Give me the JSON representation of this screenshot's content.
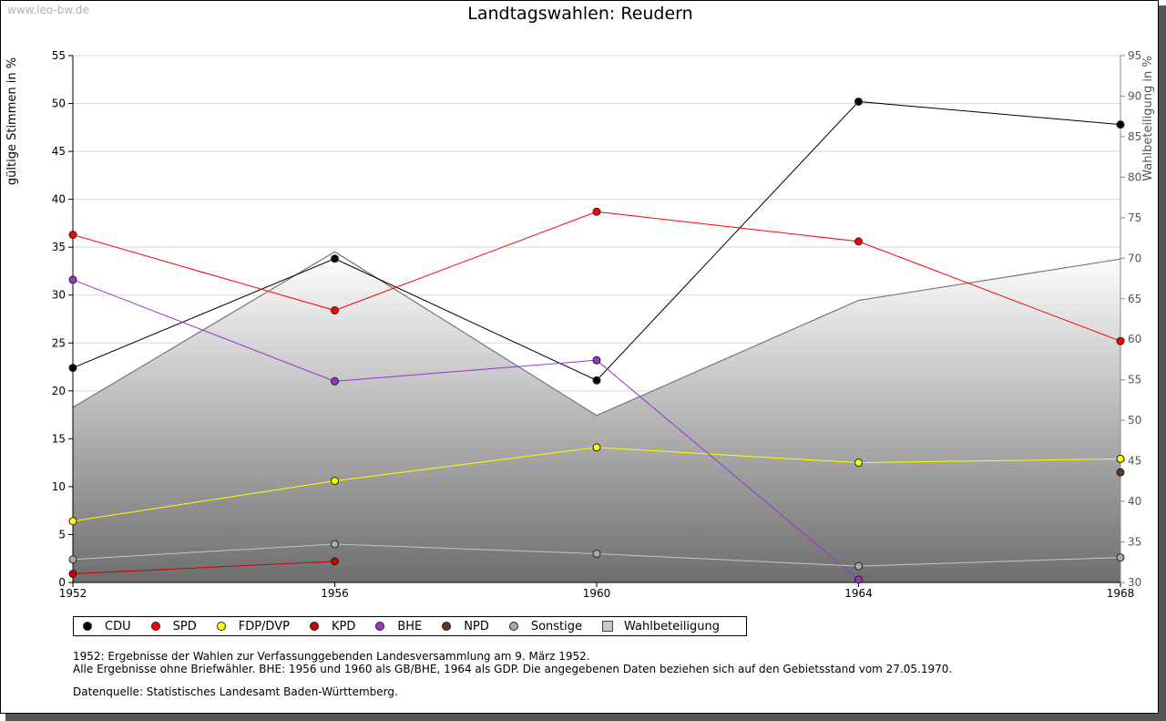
{
  "watermark": "www.leo-bw.de",
  "chart_data": {
    "type": "line",
    "title": "Landtagswahlen: Reudern",
    "ylabel": "gültige Stimmen in %",
    "y2label": "Wahlbeteiligung in %",
    "categories": [
      "1952",
      "1956",
      "1960",
      "1964",
      "1968"
    ],
    "ylim": [
      0,
      55
    ],
    "y2lim": [
      30,
      95
    ],
    "yticks": [
      0,
      5,
      10,
      15,
      20,
      25,
      30,
      35,
      40,
      45,
      50,
      55
    ],
    "y2ticks": [
      30,
      35,
      40,
      45,
      50,
      55,
      60,
      65,
      70,
      75,
      80,
      85,
      90,
      95
    ],
    "grid": true,
    "legend_position": "bottom",
    "series": [
      {
        "name": "CDU",
        "color": "#000000",
        "values": [
          22.4,
          33.8,
          21.1,
          50.2,
          47.8
        ]
      },
      {
        "name": "SPD",
        "color": "#ff0000",
        "values": [
          36.3,
          28.4,
          38.7,
          35.6,
          25.2
        ]
      },
      {
        "name": "FDP/DVP",
        "color": "#ffff00",
        "values": [
          6.4,
          10.6,
          14.1,
          12.5,
          12.9
        ]
      },
      {
        "name": "KPD",
        "color": "#cc0000",
        "values": [
          0.9,
          2.2,
          null,
          null,
          null
        ]
      },
      {
        "name": "BHE",
        "color": "#9933cc",
        "values": [
          31.6,
          21.0,
          23.2,
          0.3,
          null
        ]
      },
      {
        "name": "NPD",
        "color": "#5c3a21",
        "values": [
          null,
          null,
          null,
          null,
          11.5
        ]
      },
      {
        "name": "Sonstige",
        "color": "#aaaaaa",
        "values": [
          2.4,
          4.0,
          3.0,
          1.7,
          2.6
        ]
      },
      {
        "name": "Wahlbeteiligung",
        "color": "#c8c8c8",
        "axis": "right",
        "type": "area",
        "values": [
          51.6,
          70.8,
          50.6,
          64.8,
          69.9
        ]
      }
    ]
  },
  "notes": [
    "1952: Ergebnisse der Wahlen zur Verfassunggebenden Landesversammlung am 9. März 1952.",
    "Alle Ergebnisse ohne Briefwähler. BHE: 1956 und 1960 als GB/BHE, 1964 als GDP. Die angegebenen Daten beziehen sich auf den Gebietsstand vom 27.05.1970."
  ],
  "source": "Datenquelle: Statistisches Landesamt Baden-Württemberg."
}
